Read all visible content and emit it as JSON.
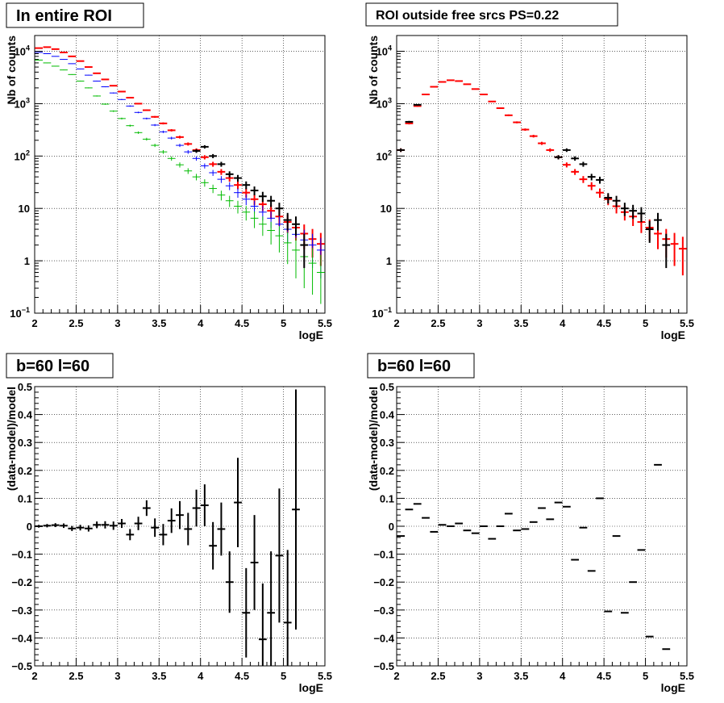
{
  "chart_data": [
    {
      "type": "scatter",
      "title": "In entire ROI",
      "xlabel": "logE",
      "ylabel": "Nb of counts",
      "xlim": [
        2,
        5.5
      ],
      "ylim": [
        0.1,
        20000
      ],
      "y_scale": "log",
      "grid": true,
      "x_tick_labels": [
        "2",
        "2.5",
        "3",
        "3.5",
        "4",
        "4.5",
        "5",
        "5.5"
      ],
      "y_tick_labels": [
        {
          "v": 0.1,
          "base": "10",
          "exp": "−1"
        },
        {
          "v": 1,
          "base": "1",
          "exp": ""
        },
        {
          "v": 10,
          "base": "10",
          "exp": ""
        },
        {
          "v": 100,
          "base": "10",
          "exp": "2"
        },
        {
          "v": 1000,
          "base": "10",
          "exp": "3"
        },
        {
          "v": 10000,
          "base": "10",
          "exp": "4"
        }
      ],
      "x": [
        2.05,
        2.15,
        2.25,
        2.35,
        2.45,
        2.55,
        2.65,
        2.75,
        2.85,
        2.95,
        3.05,
        3.15,
        3.25,
        3.35,
        3.45,
        3.55,
        3.65,
        3.75,
        3.85,
        3.95,
        4.05,
        4.15,
        4.25,
        4.35,
        4.45,
        4.55,
        4.65,
        4.75,
        4.85,
        4.95,
        5.05,
        5.15,
        5.25,
        5.35,
        5.45
      ],
      "series": [
        {
          "color": "#ff0000",
          "values": [
            11500,
            12000,
            11000,
            9500,
            8000,
            6500,
            5000,
            3800,
            2900,
            2200,
            1700,
            1300,
            1000,
            750,
            560,
            420,
            310,
            230,
            170,
            130,
            95,
            70,
            50,
            38,
            28,
            20,
            15,
            12,
            9,
            7,
            5.5,
            4.3,
            3.3,
            2.6,
            2.1
          ]
        },
        {
          "color": "#0000ff",
          "values": [
            9500,
            9000,
            8000,
            7000,
            5800,
            4600,
            3500,
            2700,
            2100,
            1600,
            1200,
            900,
            680,
            520,
            390,
            290,
            220,
            160,
            120,
            90,
            65,
            48,
            36,
            27,
            20,
            15,
            11,
            8.5,
            6.5,
            5,
            4,
            3.2,
            2.5,
            2,
            1.6
          ]
        },
        {
          "color": "#00bb00",
          "values": [
            6800,
            6000,
            5200,
            4400,
            3600,
            2700,
            2000,
            1400,
            980,
            720,
            520,
            380,
            280,
            210,
            160,
            120,
            90,
            68,
            52,
            40,
            31,
            24,
            18,
            14,
            11,
            8.5,
            6.5,
            5,
            3.8,
            3,
            2.2,
            1.6,
            1.2,
            0.9,
            0.6
          ]
        },
        {
          "color": "#000000",
          "x": [
            3.95,
            4.05,
            4.15,
            4.25,
            4.35,
            4.45,
            4.55,
            4.65,
            4.75,
            4.85,
            4.95,
            5.05,
            5.15,
            5.25
          ],
          "values": [
            125,
            150,
            100,
            70,
            45,
            38,
            28,
            22,
            17,
            14,
            10,
            6,
            5,
            2
          ]
        }
      ]
    },
    {
      "type": "scatter",
      "title": "ROI outside free srcs PS=0.22",
      "xlabel": "logE",
      "ylabel": "Nb of counts",
      "xlim": [
        2,
        5.5
      ],
      "ylim": [
        0.1,
        20000
      ],
      "y_scale": "log",
      "grid": true,
      "x_tick_labels": [
        "2",
        "2.5",
        "3",
        "3.5",
        "4",
        "4.5",
        "5",
        "5.5"
      ],
      "y_tick_labels": [
        {
          "v": 0.1,
          "base": "10",
          "exp": "−1"
        },
        {
          "v": 1,
          "base": "1",
          "exp": ""
        },
        {
          "v": 10,
          "base": "10",
          "exp": ""
        },
        {
          "v": 100,
          "base": "10",
          "exp": "2"
        },
        {
          "v": 1000,
          "base": "10",
          "exp": "3"
        },
        {
          "v": 10000,
          "base": "10",
          "exp": "4"
        }
      ],
      "x": [
        2.05,
        2.15,
        2.25,
        2.35,
        2.45,
        2.55,
        2.65,
        2.75,
        2.85,
        2.95,
        3.05,
        3.15,
        3.25,
        3.35,
        3.45,
        3.55,
        3.65,
        3.75,
        3.85,
        3.95,
        4.05,
        4.15,
        4.25,
        4.35,
        4.45,
        4.55,
        4.65,
        4.75,
        4.85,
        4.95,
        5.05,
        5.15,
        5.25,
        5.35,
        5.45
      ],
      "series": [
        {
          "color": "#ff0000",
          "values": [
            130,
            420,
            900,
            1500,
            2100,
            2600,
            2800,
            2700,
            2350,
            1900,
            1500,
            1100,
            820,
            600,
            440,
            320,
            240,
            175,
            130,
            95,
            68,
            50,
            36,
            27,
            20,
            15,
            11,
            8.5,
            7,
            5.5,
            4.3,
            3.3,
            2.6,
            2.1,
            1.7
          ]
        },
        {
          "color": "#000000",
          "x": [
            2.05,
            2.15,
            2.25,
            3.95,
            4.05,
            4.15,
            4.25,
            4.35,
            4.45,
            4.55,
            4.65,
            4.75,
            4.85,
            4.95,
            5.05,
            5.15,
            5.25
          ],
          "values": [
            130,
            450,
            950,
            95,
            130,
            90,
            70,
            40,
            35,
            16,
            14,
            10,
            9,
            8,
            4,
            6,
            2
          ]
        }
      ]
    },
    {
      "type": "scatter",
      "title": "b=60 l=60",
      "xlabel": "logE",
      "ylabel": "(data-model)/model",
      "xlim": [
        2,
        5.5
      ],
      "ylim": [
        -0.5,
        0.5
      ],
      "grid": true,
      "x_tick_labels": [
        "2",
        "2.5",
        "3",
        "3.5",
        "4",
        "4.5",
        "5",
        "5.5"
      ],
      "y_tick_labels": [
        "−0.5",
        "−0.4",
        "−0.3",
        "−0.2",
        "−0.1",
        "0",
        "0.1",
        "0.2",
        "0.3",
        "0.4",
        "0.5"
      ],
      "series": [
        {
          "color": "#000000",
          "x": [
            2.05,
            2.15,
            2.25,
            2.35,
            2.45,
            2.55,
            2.65,
            2.75,
            2.85,
            2.95,
            3.05,
            3.15,
            3.25,
            3.35,
            3.45,
            3.55,
            3.65,
            3.75,
            3.85,
            3.95,
            4.05,
            4.15,
            4.25,
            4.35,
            4.45,
            4.55,
            4.65,
            4.75,
            4.85,
            4.95,
            5.05,
            5.15
          ],
          "values": [
            0,
            0.002,
            0.004,
            0.002,
            -0.008,
            -0.005,
            -0.008,
            0.005,
            0.005,
            0.002,
            0.01,
            -0.03,
            0.01,
            0.065,
            -0.005,
            -0.03,
            0.02,
            0.04,
            -0.01,
            0.065,
            0.075,
            -0.07,
            -0.01,
            -0.2,
            0.085,
            -0.31,
            -0.13,
            -0.405,
            -0.31,
            -0.105,
            -0.345,
            0.06
          ],
          "errors": [
            0.005,
            0.006,
            0.007,
            0.008,
            0.009,
            0.01,
            0.011,
            0.012,
            0.013,
            0.015,
            0.016,
            0.02,
            0.024,
            0.028,
            0.033,
            0.038,
            0.044,
            0.05,
            0.058,
            0.066,
            0.075,
            0.085,
            0.095,
            0.11,
            0.16,
            0.16,
            0.17,
            0.2,
            0.22,
            0.24,
            0.26,
            0.43
          ]
        }
      ]
    },
    {
      "type": "scatter",
      "title": "b=60 l=60",
      "xlabel": "logE",
      "ylabel": "(data-model)/model",
      "xlim": [
        2,
        5.5
      ],
      "ylim": [
        -0.5,
        0.5
      ],
      "grid": true,
      "x_tick_labels": [
        "2",
        "2.5",
        "3",
        "3.5",
        "4",
        "4.5",
        "5",
        "5.5"
      ],
      "y_tick_labels": [
        "−0.5",
        "−0.4",
        "−0.3",
        "−0.2",
        "−0.1",
        "0",
        "0.1",
        "0.2",
        "0.3",
        "0.4",
        "0.5"
      ],
      "series": [
        {
          "color": "#000000",
          "x": [
            2.05,
            2.15,
            2.25,
            2.35,
            2.45,
            2.55,
            2.65,
            2.75,
            2.85,
            2.95,
            3.05,
            3.15,
            3.25,
            3.35,
            3.45,
            3.55,
            3.65,
            3.75,
            3.85,
            3.95,
            4.05,
            4.15,
            4.25,
            4.35,
            4.45,
            4.55,
            4.65,
            4.75,
            4.85,
            4.95,
            5.05,
            5.15,
            5.25
          ],
          "values": [
            -0.035,
            0.06,
            0.08,
            0.03,
            -0.02,
            0.005,
            0,
            0.01,
            -0.015,
            -0.025,
            0,
            -0.045,
            0,
            0.045,
            -0.015,
            -0.01,
            0.015,
            0.065,
            0.025,
            0.085,
            0.07,
            -0.12,
            -0.005,
            -0.16,
            0.1,
            -0.305,
            -0.035,
            -0.31,
            -0.2,
            -0.085,
            -0.395,
            0.22,
            -0.44
          ]
        }
      ]
    }
  ]
}
